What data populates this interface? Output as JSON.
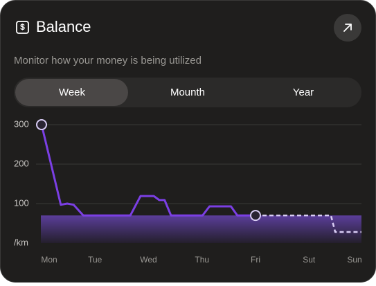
{
  "header": {
    "title": "Balance",
    "subtitle": "Monitor how your money is being utilized"
  },
  "tabs": [
    "Week",
    "Mounth",
    "Year"
  ],
  "chart_data": {
    "type": "line",
    "series": [
      {
        "color": "#7b3fe4",
        "style": "solid",
        "x": [
          0,
          0.36,
          0.48,
          0.6,
          0.78,
          1.66,
          1.85,
          2.1,
          2.2,
          2.3,
          2.42,
          3.01,
          3.14,
          3.54,
          3.66,
          4
        ],
        "values": [
          300,
          97,
          100,
          97,
          70,
          70,
          119,
          119,
          109,
          109,
          70,
          70,
          93,
          93,
          70,
          70
        ]
      },
      {
        "color": "#d9cdf5",
        "style": "dashed",
        "x": [
          4,
          5.41,
          5.49,
          5.98
        ],
        "values": [
          70,
          70,
          28,
          28
        ]
      }
    ],
    "band_value": 70,
    "xlim": [
      0,
      6
    ],
    "xticks": [
      {
        "value": 0,
        "label": "Mon"
      },
      {
        "value": 1,
        "label": "Tue"
      },
      {
        "value": 2,
        "label": "Wed"
      },
      {
        "value": 3,
        "label": "Thu"
      },
      {
        "value": 4,
        "label": "Fri"
      },
      {
        "value": 5,
        "label": "Sut"
      },
      {
        "value": 6,
        "label": "Sun"
      }
    ],
    "ylim": [
      0,
      300
    ],
    "yticks": [
      300,
      200,
      100,
      {
        "value": 0,
        "label": "/km"
      }
    ],
    "grid": true
  }
}
